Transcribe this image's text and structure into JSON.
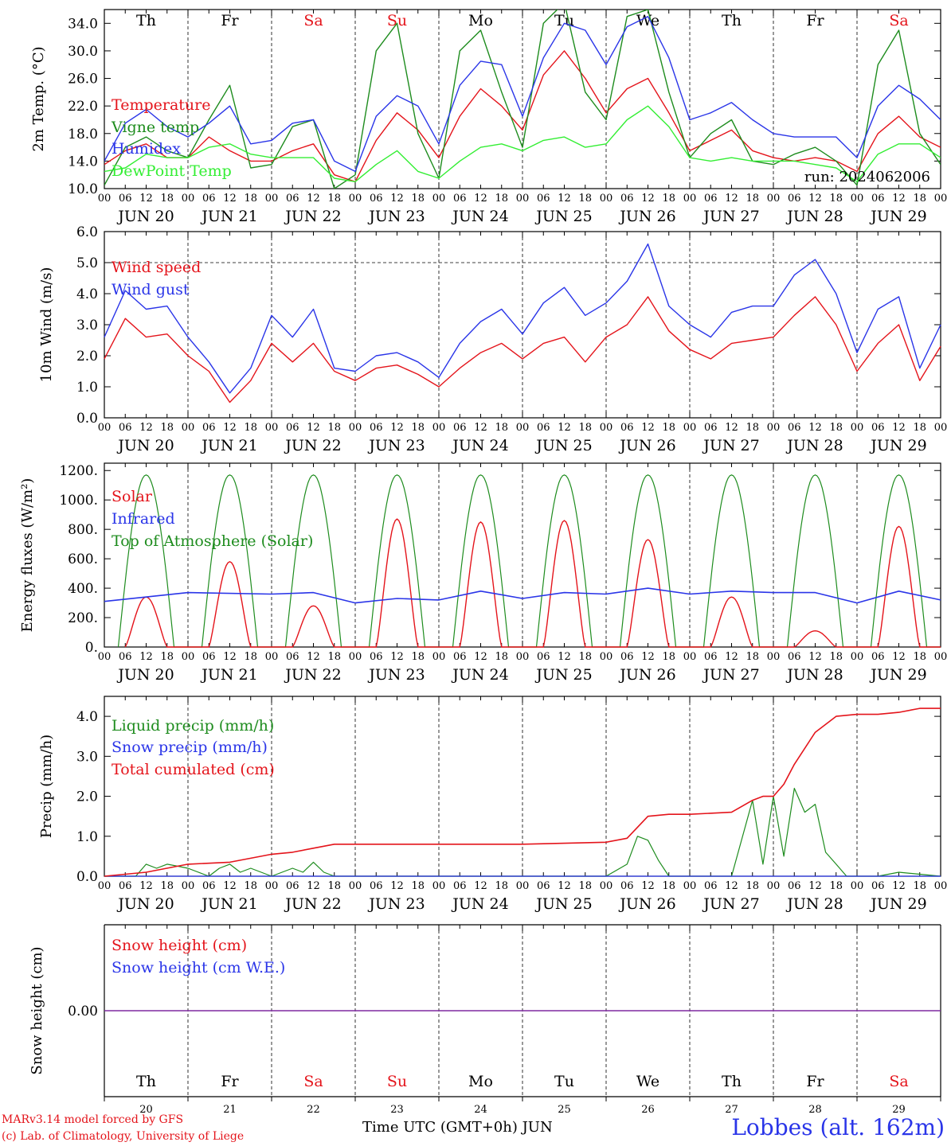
{
  "colors": {
    "red": "#e4141b",
    "green": "#1e8c1e",
    "blue": "#2a35e8",
    "lightgreen": "#33ee33",
    "purple": "#7f2aa0"
  },
  "time_axis": {
    "hour_labels": [
      "00",
      "06",
      "12",
      "18"
    ],
    "end_label": "00",
    "date_labels": [
      "JUN 20",
      "JUN 21",
      "JUN 22",
      "JUN 23",
      "JUN 24",
      "JUN 25",
      "JUN 26",
      "JUN 27",
      "JUN 28",
      "JUN 29"
    ],
    "weekdays": [
      "Th",
      "Fr",
      "Sa",
      "Su",
      "Mo",
      "Tu",
      "We",
      "Th",
      "Fr",
      "Sa"
    ],
    "weekend_days": [
      "Sa",
      "Su"
    ],
    "bottom_day_numbers": [
      "20",
      "21",
      "22",
      "23",
      "24",
      "25",
      "26",
      "27",
      "28",
      "29"
    ],
    "range_hours": [
      0,
      240
    ]
  },
  "chart_data": [
    {
      "type": "line",
      "id": "temp",
      "ylabel": "2m Temp. (°C)",
      "ylim": [
        10,
        36
      ],
      "yticks": [
        "10.0",
        "14.0",
        "18.0",
        "22.0",
        "26.0",
        "30.0",
        "34.0"
      ],
      "ytick_values": [
        10,
        14,
        18,
        22,
        26,
        30,
        34
      ],
      "annotation": "run: 2024062006",
      "series": [
        {
          "name": "Temperature",
          "color": "red",
          "x": [
            0,
            6,
            12,
            18,
            24,
            30,
            36,
            42,
            48,
            54,
            60,
            66,
            72,
            78,
            84,
            90,
            96,
            102,
            108,
            114,
            120,
            126,
            132,
            138,
            144,
            150,
            156,
            162,
            168,
            174,
            180,
            186,
            192,
            198,
            204,
            210,
            216,
            222,
            228,
            234,
            240
          ],
          "y": [
            13.5,
            15.5,
            16.5,
            14.5,
            14.5,
            17.5,
            15.5,
            14,
            14,
            15.5,
            16.5,
            12,
            11,
            17,
            21,
            18.5,
            14.5,
            20.5,
            24.5,
            22,
            18.5,
            26.5,
            30,
            26,
            21,
            24.5,
            26,
            21,
            15.5,
            17,
            18.5,
            15.5,
            14.5,
            14,
            14.5,
            14,
            12.5,
            18,
            20.5,
            17.5,
            16
          ]
        },
        {
          "name": "Vigne temp",
          "color": "green",
          "x": [
            0,
            6,
            12,
            18,
            24,
            30,
            36,
            42,
            48,
            54,
            60,
            66,
            72,
            78,
            84,
            90,
            96,
            102,
            108,
            114,
            120,
            126,
            132,
            138,
            144,
            150,
            156,
            162,
            168,
            174,
            180,
            186,
            192,
            198,
            204,
            210,
            216,
            222,
            228,
            234,
            240
          ],
          "y": [
            10.5,
            16,
            17.5,
            15.5,
            14.5,
            20,
            25,
            13,
            13.5,
            19,
            20,
            10,
            12,
            30,
            34,
            18,
            11.5,
            30,
            33,
            24,
            16,
            34,
            37,
            24,
            20,
            35,
            36,
            24,
            14.5,
            18,
            20,
            14,
            13.5,
            15,
            16,
            14,
            10.5,
            28,
            33,
            18,
            13.5
          ]
        },
        {
          "name": "Humidex",
          "color": "blue",
          "x": [
            0,
            6,
            12,
            18,
            24,
            30,
            36,
            42,
            48,
            54,
            60,
            66,
            72,
            78,
            84,
            90,
            96,
            102,
            108,
            114,
            120,
            126,
            132,
            138,
            144,
            150,
            156,
            162,
            168,
            174,
            180,
            186,
            192,
            198,
            204,
            210,
            216,
            222,
            228,
            234,
            240
          ],
          "y": [
            14,
            19.5,
            21.5,
            19,
            17.5,
            19.5,
            22,
            16.5,
            17,
            19.5,
            20,
            14,
            12.5,
            20.5,
            23.5,
            22,
            16.5,
            25,
            28.5,
            28,
            20.5,
            29,
            34,
            33,
            28,
            33.5,
            35,
            29,
            20,
            21,
            22.5,
            20,
            18,
            17.5,
            17.5,
            17.5,
            14.5,
            22,
            25,
            23,
            20
          ]
        },
        {
          "name": "DewPoint Temp",
          "color": "lightgreen",
          "x": [
            0,
            6,
            12,
            18,
            24,
            30,
            36,
            42,
            48,
            54,
            60,
            66,
            72,
            78,
            84,
            90,
            96,
            102,
            108,
            114,
            120,
            126,
            132,
            138,
            144,
            150,
            156,
            162,
            168,
            174,
            180,
            186,
            192,
            198,
            204,
            210,
            216,
            222,
            228,
            234,
            240
          ],
          "y": [
            12.5,
            13,
            15,
            14.5,
            14.5,
            16,
            16.5,
            15,
            14.5,
            14.5,
            14.5,
            11.5,
            11,
            13.5,
            15.5,
            12.5,
            11.5,
            14,
            16,
            16.5,
            15.5,
            17,
            17.5,
            16,
            16.5,
            20,
            22,
            19,
            14.5,
            14,
            14.5,
            14,
            14,
            14,
            13.5,
            13,
            11,
            15,
            16.5,
            16.5,
            14.5
          ]
        }
      ]
    },
    {
      "type": "line",
      "id": "wind",
      "ylabel": "10m Wind (m/s)",
      "ylim": [
        0,
        6
      ],
      "yticks": [
        "0.0",
        "1.0",
        "2.0",
        "3.0",
        "4.0",
        "5.0",
        "6.0"
      ],
      "ytick_values": [
        0,
        1,
        2,
        3,
        4,
        5,
        6
      ],
      "reference_line": 5.0,
      "series": [
        {
          "name": "Wind speed",
          "color": "red",
          "x": [
            0,
            6,
            12,
            18,
            24,
            30,
            36,
            42,
            48,
            54,
            60,
            66,
            72,
            78,
            84,
            90,
            96,
            102,
            108,
            114,
            120,
            126,
            132,
            138,
            144,
            150,
            156,
            162,
            168,
            174,
            180,
            186,
            192,
            198,
            204,
            210,
            216,
            222,
            228,
            234,
            240
          ],
          "y": [
            1.9,
            3.2,
            2.6,
            2.7,
            2.0,
            1.5,
            0.5,
            1.2,
            2.4,
            1.8,
            2.4,
            1.5,
            1.2,
            1.6,
            1.7,
            1.4,
            1.0,
            1.6,
            2.1,
            2.4,
            1.9,
            2.4,
            2.6,
            1.8,
            2.6,
            3.0,
            3.9,
            2.8,
            2.2,
            1.9,
            2.4,
            2.5,
            2.6,
            3.3,
            3.9,
            3.0,
            1.5,
            2.4,
            3.0,
            1.2,
            2.3
          ]
        },
        {
          "name": "Wind gust",
          "color": "blue",
          "x": [
            0,
            6,
            12,
            18,
            24,
            30,
            36,
            42,
            48,
            54,
            60,
            66,
            72,
            78,
            84,
            90,
            96,
            102,
            108,
            114,
            120,
            126,
            132,
            138,
            144,
            150,
            156,
            162,
            168,
            174,
            180,
            186,
            192,
            198,
            204,
            210,
            216,
            222,
            228,
            234,
            240
          ],
          "y": [
            2.6,
            4.1,
            3.5,
            3.6,
            2.6,
            1.8,
            0.8,
            1.6,
            3.3,
            2.6,
            3.5,
            1.6,
            1.5,
            2.0,
            2.1,
            1.8,
            1.3,
            2.4,
            3.1,
            3.5,
            2.7,
            3.7,
            4.2,
            3.3,
            3.7,
            4.4,
            5.6,
            3.6,
            3.0,
            2.6,
            3.4,
            3.6,
            3.6,
            4.6,
            5.1,
            4.0,
            2.1,
            3.5,
            3.9,
            1.6,
            3.0
          ]
        }
      ]
    },
    {
      "type": "line",
      "id": "energy",
      "ylabel": "Energy fluxes (W/m²)",
      "ylim": [
        0,
        1250
      ],
      "yticks": [
        "0.",
        "200.",
        "400.",
        "600.",
        "800.",
        "1000.",
        "1200."
      ],
      "ytick_values": [
        0,
        200,
        400,
        600,
        800,
        1000,
        1200
      ],
      "series": [
        {
          "name": "Solar",
          "color": "red",
          "daily_peaks": [
            340,
            580,
            280,
            870,
            850,
            860,
            730,
            340,
            110,
            820
          ],
          "daytime_hours": [
            4,
            20
          ]
        },
        {
          "name": "Infrared",
          "color": "blue",
          "x": [
            0,
            24,
            48,
            60,
            72,
            84,
            96,
            108,
            120,
            132,
            144,
            156,
            168,
            180,
            192,
            204,
            216,
            228,
            240
          ],
          "y": [
            310,
            370,
            360,
            370,
            300,
            330,
            320,
            380,
            330,
            370,
            360,
            400,
            360,
            380,
            370,
            370,
            300,
            380,
            320
          ]
        },
        {
          "name": "Top of Atmosphere (Solar)",
          "color": "green",
          "daily_peak": 1170,
          "daytime_hours": [
            4,
            20
          ]
        }
      ]
    },
    {
      "type": "line",
      "id": "precip",
      "ylabel": "Precip (mm/h)",
      "ylim": [
        0,
        4.5
      ],
      "yticks": [
        "0.0",
        "1.0",
        "2.0",
        "3.0",
        "4.0"
      ],
      "ytick_values": [
        0,
        1,
        2,
        3,
        4
      ],
      "series": [
        {
          "name": "Liquid precip (mm/h)",
          "color": "green",
          "x": [
            0,
            9,
            12,
            15,
            18,
            21,
            24,
            30,
            33,
            36,
            39,
            42,
            45,
            48,
            54,
            57,
            60,
            63,
            66,
            72,
            96,
            144,
            150,
            153,
            156,
            159,
            162,
            165,
            168,
            180,
            186,
            189,
            192,
            195,
            198,
            201,
            204,
            207,
            210,
            213,
            216,
            222,
            228,
            234,
            240
          ],
          "y": [
            0,
            0,
            0.3,
            0.2,
            0.3,
            0.25,
            0.2,
            0,
            0.2,
            0.3,
            0.1,
            0.2,
            0.1,
            0,
            0.2,
            0.1,
            0.35,
            0.1,
            0,
            0,
            0,
            0,
            0.3,
            1.0,
            0.9,
            0.4,
            0,
            0,
            0,
            0,
            1.9,
            0.3,
            2.0,
            0.5,
            2.2,
            1.6,
            1.8,
            0.6,
            0.3,
            0,
            0,
            0,
            0.1,
            0.05,
            0
          ]
        },
        {
          "name": "Snow precip (mm/h)",
          "color": "blue",
          "x": [
            0,
            240
          ],
          "y": [
            0,
            0
          ]
        },
        {
          "name": "Total cumulated (cm)",
          "color": "red",
          "x": [
            0,
            12,
            24,
            36,
            42,
            48,
            54,
            60,
            66,
            72,
            96,
            120,
            144,
            150,
            156,
            162,
            168,
            180,
            186,
            189,
            192,
            195,
            198,
            204,
            210,
            216,
            222,
            228,
            234,
            240
          ],
          "y": [
            0,
            0.1,
            0.3,
            0.35,
            0.45,
            0.55,
            0.6,
            0.7,
            0.8,
            0.8,
            0.8,
            0.8,
            0.85,
            0.95,
            1.5,
            1.55,
            1.55,
            1.6,
            1.9,
            2.0,
            2.0,
            2.3,
            2.8,
            3.6,
            4.0,
            4.05,
            4.05,
            4.1,
            4.2,
            4.2
          ]
        }
      ]
    },
    {
      "type": "line",
      "id": "snow",
      "ylabel": "Snow height (cm)",
      "ytick": "0.00",
      "series": [
        {
          "name": "Snow height (cm)",
          "color": "red",
          "x": [
            0,
            240
          ],
          "y": [
            0,
            0
          ]
        },
        {
          "name": "Snow height (cm W.E.)",
          "color": "blue",
          "x": [
            0,
            240
          ],
          "y": [
            0,
            0
          ]
        }
      ]
    }
  ],
  "footer": {
    "model_line": "MARv3.14 model forced by GFS",
    "lab_line": "(c) Lab. of Climatology, University of Liege",
    "time_label": "Time UTC (GMT+0h) JUN",
    "station": "Lobbes (alt. 162m)"
  }
}
